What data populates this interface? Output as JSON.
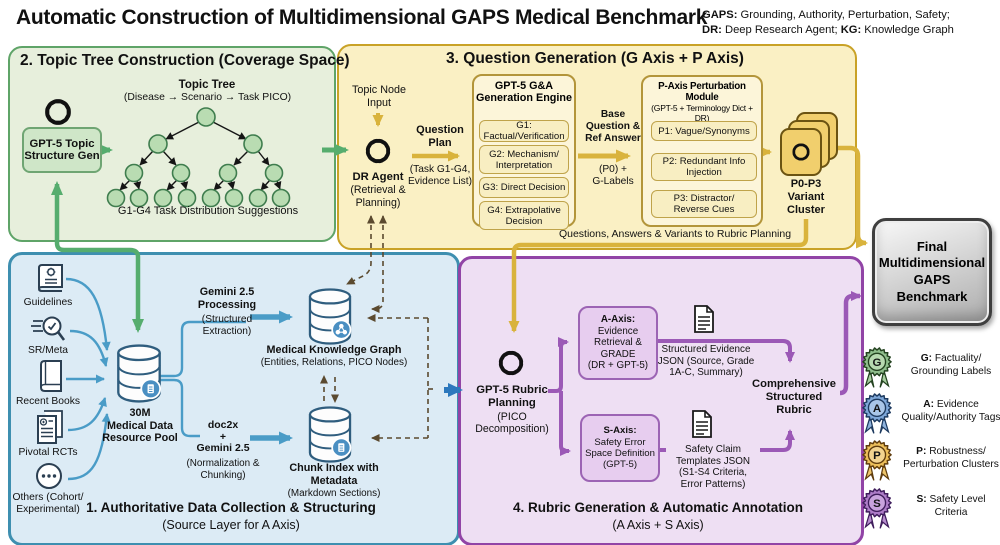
{
  "header": {
    "title": "Automatic Construction of Multidimensional GAPS Medical Benchmark",
    "abbrev": [
      {
        "key": "GAPS:",
        "text": " Grounding, Authority, Perturbation, Safety;"
      },
      {
        "key": "DR:",
        "text": " Deep Research Agent; "
      },
      {
        "key": "KG:",
        "text": " Knowledge Graph"
      }
    ]
  },
  "topic_tree": {
    "title": "2. Topic Tree Construction (Coverage Space)",
    "generator_label": "GPT-5 Topic\nStructure Gen",
    "tree_title": "Topic Tree",
    "tree_subtitle": "(Disease → Scenario → Task PICO)",
    "caption": "G1-G4 Task Distribution Suggestions"
  },
  "question_generation": {
    "title": "3. Question Generation (G Axis + P Axis)",
    "topic_node_input": "Topic Node\nInput",
    "dr_agent": "DR Agent",
    "dr_agent_sub": "(Retrieval &\nPlanning)",
    "question_plan": "Question\nPlan",
    "question_plan_sub": "(Task G1-G4,\nEvidence List)",
    "engine_title": "GPT-5 G&A\nGeneration Engine",
    "engine_items": [
      "G1: Factual/Verification",
      "G2: Mechanism/\nInterpretation",
      "G3: Direct Decision",
      "G4: Extrapolative\nDecision"
    ],
    "base_question": "Base\nQuestion &\nRef Answer",
    "base_question_sub": "(P0) +\nG-Labels",
    "perturbation_title": "P-Axis Perturbation Module",
    "perturbation_sub": "(GPT-5 + Terminology Dict + DR)",
    "perturbation_items": [
      "P1: Vague/Synonyms",
      "P2: Redundant Info\nInjection",
      "P3: Distractor/\nReverse Cues"
    ],
    "variant_cluster": "P0-P3\nVariant\nCluster",
    "flow_note": "Questions, Answers & Variants to Rubric Planning"
  },
  "data_collection": {
    "title": "1. Authoritative Data Collection & Structuring",
    "subtitle": "(Source Layer for A Axis)",
    "sources": [
      "Guidelines",
      "SR/Meta",
      "Recent Books",
      "Pivotal RCTs",
      "Others (Cohort/\nExperimental)"
    ],
    "pool_label": "30M\nMedical Data\nResource Pool",
    "gemini_processing": "Gemini 2.5\nProcessing",
    "gemini_processing_sub": "(Structured\nExtraction)",
    "kg_label": "Medical Knowledge Graph",
    "kg_sub": "(Entities, Relations, PICO Nodes)",
    "doc2x": "doc2x\n+\nGemini 2.5",
    "doc2x_sub": "(Normalization &\nChunking)",
    "chunk_label": "Chunk Index with\nMetadata",
    "chunk_sub": "(Markdown Sections)"
  },
  "rubric_generation": {
    "title": "4. Rubric Generation & Automatic Annotation",
    "subtitle": "(A Axis + S Axis)",
    "planning": "GPT-5 Rubric\nPlanning",
    "planning_sub": "(PICO\nDecomposition)",
    "a_axis_head": "A-Axis:",
    "a_axis_body": "Evidence\nRetrieval &\nGRADE\n(DR + GPT-5)",
    "s_axis_head": "S-Axis:",
    "s_axis_body": "Safety Error\nSpace Definition\n(GPT-5)",
    "evidence_note": "Structured Evidence\nJSON (Source, Grade\n1A-C, Summary)",
    "safety_note": "Safety Claim\nTemplates JSON\n(S1-S4 Criteria,\nError Patterns)",
    "rubric": "Comprehensive\nStructured\nRubric"
  },
  "benchmark": {
    "label": "Final\nMultidimensional\nGAPS\nBenchmark"
  },
  "axis_legend": [
    {
      "letter": "G",
      "prefix": "G:",
      "text": "Factuality/ Grounding Labels",
      "color": "#8fbe8c",
      "inner": "#b7d9b0",
      "dark": "#23421f",
      "ribbon": "#a8cfa0"
    },
    {
      "letter": "A",
      "prefix": "A:",
      "text": "Evidence Quality/Authority Tags",
      "color": "#7fa8d9",
      "inner": "#a9c6e8",
      "dark": "#1d3a5f",
      "ribbon": "#8fb3dd"
    },
    {
      "letter": "P",
      "prefix": "P:",
      "text": "Robustness/ Perturbation Clusters",
      "color": "#edbf5a",
      "inner": "#f3d490",
      "dark": "#5f3c0d",
      "ribbon": "#eec56a"
    },
    {
      "letter": "S",
      "prefix": "S:",
      "text": "Safety Level Criteria",
      "color": "#ad7cc7",
      "inner": "#c9a3dd",
      "dark": "#3f1d5c",
      "ribbon": "#b78cce"
    }
  ],
  "colors": {
    "section_green": "#5fa468",
    "section_yellow": "#c9a227",
    "section_blue": "#3e8fb0",
    "section_purple": "#9144a6",
    "arrow_green": "#56ad6e",
    "arrow_yellow": "#d9b33c",
    "arrow_teal": "#4a9cc7",
    "arrow_blue": "#2c78bd",
    "arrow_purple": "#9b59b6",
    "dashed_link": "#5b4a2f",
    "benchmark_gray": "#c7c7c7"
  }
}
